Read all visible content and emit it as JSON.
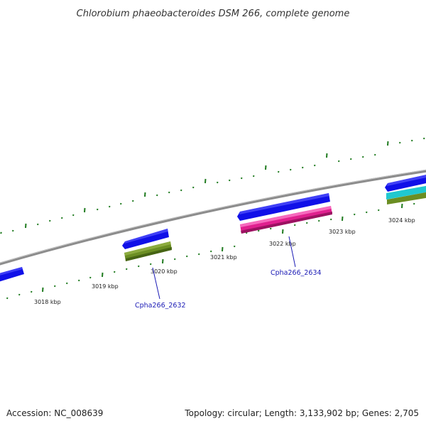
{
  "title": "Chlorobium phaeobacteroides DSM 266, complete genome",
  "footer": {
    "accession": "Accession: NC_008639",
    "topology": "Topology: circular; Length: 3,133,902 bp; Genes: 2,705"
  },
  "scale_labels": [
    "3018 kbp",
    "3019 kbp",
    "3020 kbp",
    "3021 kbp",
    "3022 kbp",
    "3023 kbp",
    "3024 kbp"
  ],
  "gene_labels": {
    "first": "Cpha266_2632",
    "second": "Cpha266_2634"
  },
  "colors": {
    "cds": "#1010e8",
    "feature_olive": "#6b8e23",
    "feature_magenta": "#e0208f",
    "feature_cyan": "#20c8d0",
    "backbone": "#8c8c8c",
    "tick": "#1e7a1e",
    "label_link": "#1a1ab5"
  }
}
